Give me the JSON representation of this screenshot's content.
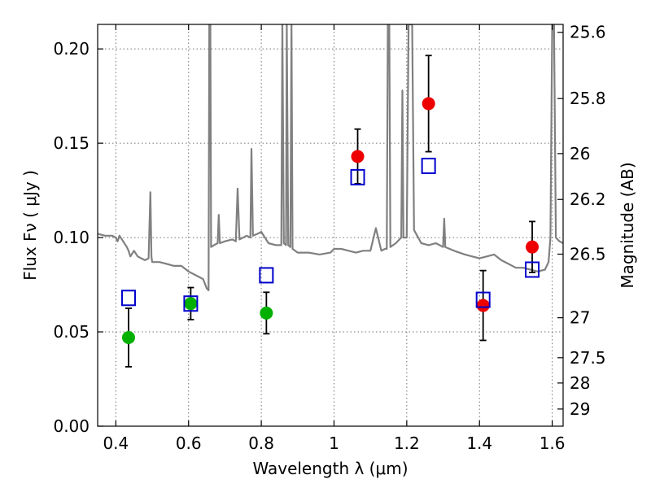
{
  "chart_data": {
    "type": "scatter",
    "title": "",
    "xlabel": "Wavelength  λ (μm)",
    "ylabel": "Flux  Fν  ( μJy )",
    "y2label": "Magnitude (AB)",
    "xlim": [
      0.35,
      1.63
    ],
    "ylim": [
      0.0,
      0.213
    ],
    "grid": true,
    "x_ticks": [
      {
        "value": 0.4,
        "label": "0.4"
      },
      {
        "value": 0.6,
        "label": "0.6"
      },
      {
        "value": 0.8,
        "label": "0.8"
      },
      {
        "value": 1.0,
        "label": "1"
      },
      {
        "value": 1.2,
        "label": "1.2"
      },
      {
        "value": 1.4,
        "label": "1.4"
      },
      {
        "value": 1.6,
        "label": "1.6"
      }
    ],
    "y_ticks": [
      {
        "value": 0.0,
        "label": "0.00"
      },
      {
        "value": 0.05,
        "label": "0.05"
      },
      {
        "value": 0.1,
        "label": "0.10"
      },
      {
        "value": 0.15,
        "label": "0.15"
      },
      {
        "value": 0.2,
        "label": "0.20"
      }
    ],
    "y2_ticks": [
      {
        "flux": 0.2088,
        "label": "25.6"
      },
      {
        "flux": 0.1737,
        "label": "25.8"
      },
      {
        "flux": 0.1445,
        "label": "26"
      },
      {
        "flux": 0.1202,
        "label": "26.2"
      },
      {
        "flux": 0.0912,
        "label": "26.5"
      },
      {
        "flux": 0.0575,
        "label": "27"
      },
      {
        "flux": 0.0363,
        "label": "27.5"
      },
      {
        "flux": 0.0229,
        "label": "28"
      },
      {
        "flux": 0.0091,
        "label": "29"
      }
    ],
    "series": [
      {
        "marker": "filled-circle",
        "color": "#00b000",
        "points": [
          {
            "x": 0.435,
            "y": 0.047,
            "yerr": 0.0155
          },
          {
            "x": 0.606,
            "y": 0.065,
            "yerr": 0.0085
          },
          {
            "x": 0.814,
            "y": 0.06,
            "yerr": 0.011
          }
        ]
      },
      {
        "marker": "filled-circle",
        "color": "#ee0000",
        "points": [
          {
            "x": 1.065,
            "y": 0.143,
            "yerr": 0.0145
          },
          {
            "x": 1.26,
            "y": 0.171,
            "yerr": 0.0255
          },
          {
            "x": 1.41,
            "y": 0.064,
            "yerr": 0.0185
          },
          {
            "x": 1.545,
            "y": 0.095,
            "yerr": 0.0135
          }
        ]
      },
      {
        "marker": "open-square",
        "color": "#0000cc",
        "points": [
          {
            "x": 0.435,
            "y": 0.068
          },
          {
            "x": 0.606,
            "y": 0.065
          },
          {
            "x": 0.814,
            "y": 0.08
          },
          {
            "x": 1.065,
            "y": 0.132
          },
          {
            "x": 1.26,
            "y": 0.138
          },
          {
            "x": 1.41,
            "y": 0.067
          },
          {
            "x": 1.545,
            "y": 0.083
          }
        ]
      },
      {
        "marker": "line",
        "color": "#808080",
        "points": [
          [
            0.35,
            0.102
          ],
          [
            0.37,
            0.101
          ],
          [
            0.39,
            0.101
          ],
          [
            0.4,
            0.1
          ],
          [
            0.405,
            0.098
          ],
          [
            0.41,
            0.101
          ],
          [
            0.42,
            0.098
          ],
          [
            0.43,
            0.095
          ],
          [
            0.435,
            0.093
          ],
          [
            0.44,
            0.09
          ],
          [
            0.45,
            0.093
          ],
          [
            0.46,
            0.09
          ],
          [
            0.47,
            0.089
          ],
          [
            0.48,
            0.088
          ],
          [
            0.49,
            0.089
          ],
          [
            0.495,
            0.124
          ],
          [
            0.498,
            0.09
          ],
          [
            0.5,
            0.087
          ],
          [
            0.52,
            0.087
          ],
          [
            0.54,
            0.086
          ],
          [
            0.56,
            0.085
          ],
          [
            0.58,
            0.085
          ],
          [
            0.6,
            0.082
          ],
          [
            0.62,
            0.08
          ],
          [
            0.64,
            0.078
          ],
          [
            0.65,
            0.073
          ],
          [
            0.655,
            0.072
          ],
          [
            0.657,
            0.213
          ],
          [
            0.66,
            0.213
          ],
          [
            0.662,
            0.095
          ],
          [
            0.67,
            0.096
          ],
          [
            0.68,
            0.097
          ],
          [
            0.683,
            0.112
          ],
          [
            0.686,
            0.097
          ],
          [
            0.7,
            0.098
          ],
          [
            0.72,
            0.099
          ],
          [
            0.73,
            0.098
          ],
          [
            0.735,
            0.126
          ],
          [
            0.74,
            0.099
          ],
          [
            0.76,
            0.101
          ],
          [
            0.77,
            0.1
          ],
          [
            0.773,
            0.147
          ],
          [
            0.777,
            0.101
          ],
          [
            0.79,
            0.102
          ],
          [
            0.8,
            0.103
          ],
          [
            0.82,
            0.097
          ],
          [
            0.84,
            0.096
          ],
          [
            0.855,
            0.096
          ],
          [
            0.858,
            0.213
          ],
          [
            0.862,
            0.097
          ],
          [
            0.868,
            0.096
          ],
          [
            0.87,
            0.213
          ],
          [
            0.874,
            0.096
          ],
          [
            0.88,
            0.095
          ],
          [
            0.883,
            0.213
          ],
          [
            0.886,
            0.094
          ],
          [
            0.9,
            0.092
          ],
          [
            0.93,
            0.092
          ],
          [
            0.96,
            0.091
          ],
          [
            0.99,
            0.092
          ],
          [
            1.0,
            0.094
          ],
          [
            1.02,
            0.094
          ],
          [
            1.04,
            0.093
          ],
          [
            1.06,
            0.092
          ],
          [
            1.08,
            0.093
          ],
          [
            1.1,
            0.093
          ],
          [
            1.115,
            0.105
          ],
          [
            1.13,
            0.093
          ],
          [
            1.14,
            0.094
          ],
          [
            1.145,
            0.094
          ],
          [
            1.148,
            0.213
          ],
          [
            1.152,
            0.213
          ],
          [
            1.155,
            0.095
          ],
          [
            1.17,
            0.097
          ],
          [
            1.185,
            0.1
          ],
          [
            1.188,
            0.178
          ],
          [
            1.191,
            0.1
          ],
          [
            1.2,
            0.1
          ],
          [
            1.205,
            0.213
          ],
          [
            1.215,
            0.213
          ],
          [
            1.22,
            0.104
          ],
          [
            1.24,
            0.097
          ],
          [
            1.26,
            0.096
          ],
          [
            1.28,
            0.097
          ],
          [
            1.3,
            0.095
          ],
          [
            1.303,
            0.11
          ],
          [
            1.306,
            0.095
          ],
          [
            1.33,
            0.093
          ],
          [
            1.36,
            0.091
          ],
          [
            1.38,
            0.09
          ],
          [
            1.4,
            0.089
          ],
          [
            1.42,
            0.09
          ],
          [
            1.44,
            0.091
          ],
          [
            1.46,
            0.088
          ],
          [
            1.48,
            0.086
          ],
          [
            1.5,
            0.084
          ],
          [
            1.52,
            0.084
          ],
          [
            1.54,
            0.083
          ],
          [
            1.56,
            0.082
          ],
          [
            1.58,
            0.083
          ],
          [
            1.59,
            0.087
          ],
          [
            1.595,
            0.1
          ],
          [
            1.6,
            0.213
          ],
          [
            1.605,
            0.213
          ],
          [
            1.61,
            0.1
          ],
          [
            1.62,
            0.098
          ],
          [
            1.63,
            0.097
          ]
        ]
      }
    ]
  }
}
